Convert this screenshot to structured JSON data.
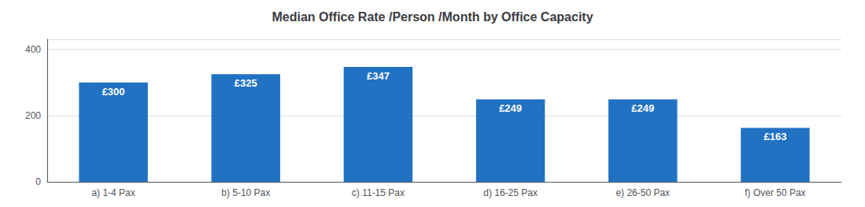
{
  "chart_data": {
    "type": "bar",
    "title": "Median Office Rate /Person /Month by Office Capacity",
    "categories": [
      "a) 1-4 Pax",
      "b) 5-10 Pax",
      "c) 11-15 Pax",
      "d) 16-25 Pax",
      "e) 26-50 Pax",
      "f) Over 50 Pax"
    ],
    "values": [
      300,
      325,
      347,
      249,
      249,
      163
    ],
    "value_labels": [
      "£300",
      "£325",
      "£347",
      "£249",
      "£249",
      "£163"
    ],
    "data_labels": true,
    "color": "#2172C3",
    "ylim": [
      0,
      430
    ],
    "yticks": [
      0,
      200,
      400
    ],
    "grid": true
  }
}
